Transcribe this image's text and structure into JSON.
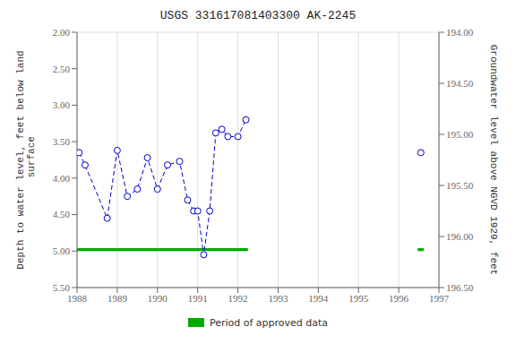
{
  "chart_data": {
    "type": "line",
    "title": "USGS 331617081403300 AK-2245",
    "y_label": "Depth to water level, feet below land\n surface",
    "y2_label": "Groundwater level above NGVD 1929, feet",
    "xlim": [
      1988,
      1997
    ],
    "xticks": [
      1988,
      1989,
      1990,
      1991,
      1992,
      1993,
      1994,
      1995,
      1996,
      1997
    ],
    "ylim": [
      5.5,
      2.0
    ],
    "yticks": [
      {
        "value": 2.0,
        "label": "2.00"
      },
      {
        "value": 2.5,
        "label": "2.50"
      },
      {
        "value": 3.0,
        "label": "3.00"
      },
      {
        "value": 3.5,
        "label": "3.50"
      },
      {
        "value": 4.0,
        "label": "4.00"
      },
      {
        "value": 4.5,
        "label": "4.50"
      },
      {
        "value": 5.0,
        "label": "5.00"
      },
      {
        "value": 5.5,
        "label": "5.50"
      }
    ],
    "y2lim": [
      196.5,
      194.0
    ],
    "y2ticks": [
      {
        "value": 196.5,
        "label": "196.50"
      },
      {
        "value": 196.0,
        "label": "196.00"
      },
      {
        "value": 195.5,
        "label": "195.50"
      },
      {
        "value": 195.0,
        "label": "195.00"
      },
      {
        "value": 194.5,
        "label": "194.50"
      },
      {
        "value": 194.0,
        "label": "194.00"
      }
    ],
    "grid": true,
    "legend": "bottom",
    "series": [
      {
        "color": "#0000CC",
        "marker": "circle",
        "line_style": "dashed",
        "x": [
          1988.05,
          1988.2,
          1988.75,
          1989.0,
          1989.25,
          1989.5,
          1989.75,
          1990.0,
          1990.25,
          1990.55,
          1990.75,
          1990.9,
          1991.0,
          1991.15,
          1991.3,
          1991.45,
          1991.6,
          1991.75,
          1992.0,
          1992.2
        ],
        "values": [
          3.65,
          3.82,
          4.55,
          3.62,
          4.25,
          4.15,
          3.72,
          4.15,
          3.82,
          3.77,
          4.3,
          4.45,
          4.45,
          5.05,
          4.45,
          3.38,
          3.33,
          3.43,
          3.43,
          3.2
        ]
      },
      {
        "color": "#0000CC",
        "marker": "circle",
        "line_style": "none",
        "x": [
          1996.55
        ],
        "values": [
          3.65
        ]
      }
    ],
    "approved": {
      "name": "Period of approved data",
      "color": "#00AA00",
      "y": [
        4.96,
        5.0
      ],
      "segments": [
        [
          1988.0,
          1992.25
        ],
        [
          1996.47,
          1996.62
        ]
      ]
    }
  }
}
